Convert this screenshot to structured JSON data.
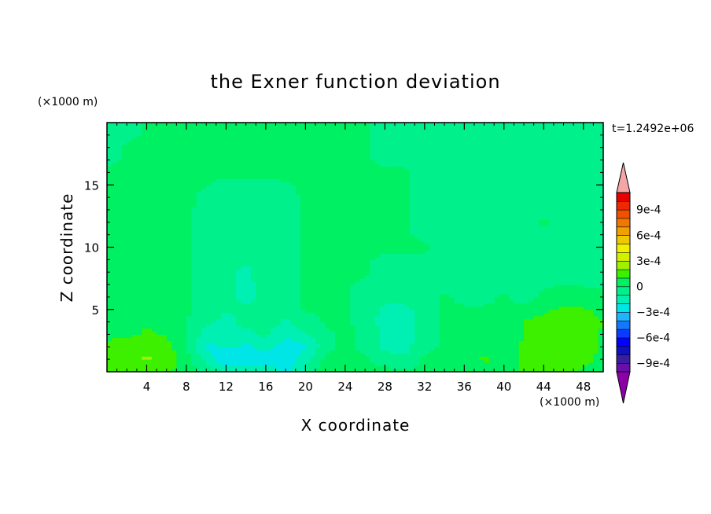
{
  "chart_data": {
    "type": "heatmap",
    "title": "the Exner function deviation",
    "xlabel": "X coordinate",
    "ylabel": "Z coordinate",
    "x_unit": "(×1000 m)",
    "y_unit": "(×1000 m)",
    "time_label": "t=1.2492e+06",
    "xlim": [
      0,
      50
    ],
    "ylim": [
      0,
      20
    ],
    "x_ticks": [
      4,
      8,
      12,
      16,
      20,
      24,
      28,
      32,
      36,
      40,
      44,
      48
    ],
    "y_ticks": [
      5,
      10,
      15
    ],
    "colorbar": {
      "levels": [
        -0.001,
        -0.0009,
        -0.0008,
        -0.0007,
        -0.0006,
        -0.0005,
        -0.0004,
        -0.0003,
        -0.0002,
        -0.0001,
        0,
        0.0001,
        0.0002,
        0.0003,
        0.0004,
        0.0005,
        0.0006,
        0.0007,
        0.0008,
        0.0009,
        0.001
      ],
      "colors": [
        "#6a0dad",
        "#3a1ea0",
        "#1010c0",
        "#0000ff",
        "#0a3cff",
        "#1478ff",
        "#1eb4ff",
        "#00e6e6",
        "#00f0b4",
        "#00f08c",
        "#00f064",
        "#3cf000",
        "#a0f000",
        "#d2f000",
        "#f0f000",
        "#f0c800",
        "#f0a000",
        "#f07800",
        "#f05000",
        "#f02800",
        "#e80000"
      ],
      "under_color": "#8c00a8",
      "over_color": "#f4a6a6",
      "tick_labels": [
        "9e-4",
        "6e-4",
        "3e-4",
        "0",
        "−3e-4",
        "−6e-4",
        "−9e-4"
      ]
    },
    "field": {
      "x": [
        0,
        2,
        4,
        6,
        8,
        10,
        12,
        14,
        16,
        18,
        20,
        22,
        24,
        26,
        28,
        30,
        32,
        34,
        36,
        38,
        40,
        42,
        44,
        46,
        48,
        50
      ],
      "z": [
        0,
        1,
        2,
        3,
        4,
        5,
        6,
        8,
        10,
        12,
        14,
        16,
        18,
        20
      ],
      "values": [
        [
          0.00012,
          0.00013,
          0.00016,
          0.00012,
          5e-05,
          -3e-05,
          -8e-05,
          -0.00018,
          -0.00012,
          -0.00022,
          -8e-05,
          8e-05,
          5e-05,
          3e-05,
          4e-05,
          2e-05,
          2e-05,
          1e-05,
          2e-05,
          3e-05,
          6e-05,
          0.00012,
          0.00014,
          0.00012,
          9e-05,
          6e-05
        ],
        [
          0.00016,
          0.00018,
          0.00021,
          0.00016,
          4e-05,
          -0.00012,
          -0.00032,
          -0.00024,
          -0.00026,
          -0.00028,
          -0.00014,
          2e-05,
          4e-05,
          2e-05,
          -6e-05,
          -8e-05,
          2e-05,
          1e-05,
          4e-05,
          0.00012,
          4e-05,
          0.00012,
          0.00016,
          0.00015,
          0.00012,
          8e-05
        ],
        [
          0.00014,
          0.00018,
          0.00019,
          0.00014,
          2e-05,
          -0.00024,
          -0.00018,
          -0.00022,
          -0.00016,
          -0.00026,
          -0.00022,
          -4e-05,
          3e-05,
          -4e-05,
          -0.00012,
          -0.00014,
          -2e-05,
          1e-05,
          3e-05,
          6e-05,
          4e-05,
          0.00011,
          0.00017,
          0.00016,
          0.00013,
          9e-05
        ],
        [
          7e-05,
          8e-05,
          0.00012,
          9e-05,
          2e-05,
          -0.00014,
          -0.00016,
          -0.00012,
          -8e-05,
          -0.00018,
          -0.00012,
          -2e-05,
          2e-05,
          -2e-05,
          -0.00014,
          -0.00016,
          -6e-05,
          1e-05,
          2e-05,
          2e-05,
          2e-05,
          0.00011,
          0.00015,
          0.00015,
          0.00012,
          9e-05
        ],
        [
          2e-05,
          4e-05,
          8e-05,
          6e-05,
          1e-05,
          -8e-05,
          -0.00012,
          -8e-05,
          -5e-05,
          -0.00012,
          -4e-05,
          1e-05,
          2e-05,
          -4e-05,
          -0.00014,
          -0.00016,
          -5e-05,
          1e-05,
          1e-05,
          1e-05,
          2e-05,
          0.00011,
          0.00014,
          0.00014,
          0.00013,
          0.0001
        ],
        [
          1e-05,
          2e-05,
          3e-05,
          2e-05,
          1e-05,
          -6e-05,
          -0.0001,
          -8e-05,
          -6e-05,
          -6e-05,
          1e-05,
          1e-05,
          1e-05,
          -6e-05,
          -0.00012,
          -0.00012,
          -6e-05,
          1e-05,
          1e-05,
          1e-05,
          1e-05,
          3e-05,
          8e-05,
          0.00012,
          0.00011,
          8e-05
        ],
        [
          1e-05,
          1e-05,
          1e-05,
          1e-05,
          1e-05,
          -6e-05,
          -8e-05,
          -0.00012,
          -8e-05,
          -4e-05,
          1e-05,
          1e-05,
          1e-05,
          -4e-05,
          -8e-05,
          -8e-05,
          -4e-05,
          1e-05,
          -2e-05,
          -2e-05,
          1e-05,
          -3e-05,
          2e-05,
          4e-05,
          3e-05,
          2e-05
        ],
        [
          1e-05,
          1e-05,
          1e-05,
          1e-05,
          1e-05,
          -4e-05,
          -8e-05,
          -0.00012,
          -6e-05,
          -3e-05,
          1e-05,
          1e-05,
          1e-05,
          1e-05,
          -4e-05,
          -4e-05,
          -4e-05,
          -4e-05,
          -4e-05,
          -4e-05,
          -4e-05,
          -4e-05,
          -4e-05,
          -4e-05,
          -4e-05,
          -4e-05
        ],
        [
          1e-05,
          1e-05,
          1e-05,
          1e-05,
          1e-05,
          -3e-05,
          -5e-05,
          -6e-05,
          -4e-05,
          -2e-05,
          1e-05,
          1e-05,
          1e-05,
          1e-05,
          1e-05,
          1e-05,
          1e-05,
          -4e-05,
          -4e-05,
          -4e-05,
          -4e-05,
          -4e-05,
          -4e-05,
          -4e-05,
          -4e-05,
          -4e-05
        ],
        [
          1e-05,
          1e-05,
          1e-05,
          1e-05,
          1e-05,
          -3e-05,
          -4e-05,
          -4e-05,
          -3e-05,
          -2e-05,
          1e-05,
          1e-05,
          1e-05,
          1e-05,
          1e-05,
          1e-05,
          -4e-05,
          -4e-05,
          -4e-05,
          -4e-05,
          -4e-05,
          -4e-05,
          1e-05,
          -4e-05,
          -4e-05,
          -4e-05
        ],
        [
          1e-05,
          1e-05,
          1e-05,
          1e-05,
          1e-05,
          -1e-05,
          -3e-05,
          -3e-05,
          -3e-05,
          -2e-05,
          1e-05,
          1e-05,
          1e-05,
          1e-05,
          1e-05,
          1e-05,
          -4e-05,
          -4e-05,
          -4e-05,
          -4e-05,
          -4e-05,
          -4e-05,
          -4e-05,
          -4e-05,
          -4e-05,
          -4e-05
        ],
        [
          1e-05,
          1e-05,
          1e-05,
          1e-05,
          1e-05,
          1e-05,
          1e-05,
          1e-05,
          1e-05,
          1e-05,
          1e-05,
          1e-05,
          1e-05,
          1e-05,
          1e-05,
          1e-05,
          -4e-05,
          -4e-05,
          -4e-05,
          -4e-05,
          -4e-05,
          -4e-05,
          -4e-05,
          -4e-05,
          -4e-05,
          -4e-05
        ],
        [
          -4e-05,
          1e-05,
          1e-05,
          1e-05,
          1e-05,
          1e-05,
          1e-05,
          1e-05,
          1e-05,
          1e-05,
          1e-05,
          1e-05,
          1e-05,
          1e-05,
          -4e-05,
          -4e-05,
          -4e-05,
          -4e-05,
          -4e-05,
          -4e-05,
          -4e-05,
          -4e-05,
          -4e-05,
          -4e-05,
          -4e-05,
          -4e-05
        ],
        [
          -4e-05,
          -4e-05,
          1e-05,
          1e-05,
          1e-05,
          1e-05,
          1e-05,
          1e-05,
          1e-05,
          1e-05,
          1e-05,
          1e-05,
          1e-05,
          1e-05,
          -4e-05,
          -4e-05,
          -4e-05,
          -4e-05,
          -4e-05,
          -4e-05,
          -4e-05,
          -4e-05,
          -4e-05,
          -4e-05,
          -4e-05,
          -4e-05
        ]
      ]
    }
  }
}
